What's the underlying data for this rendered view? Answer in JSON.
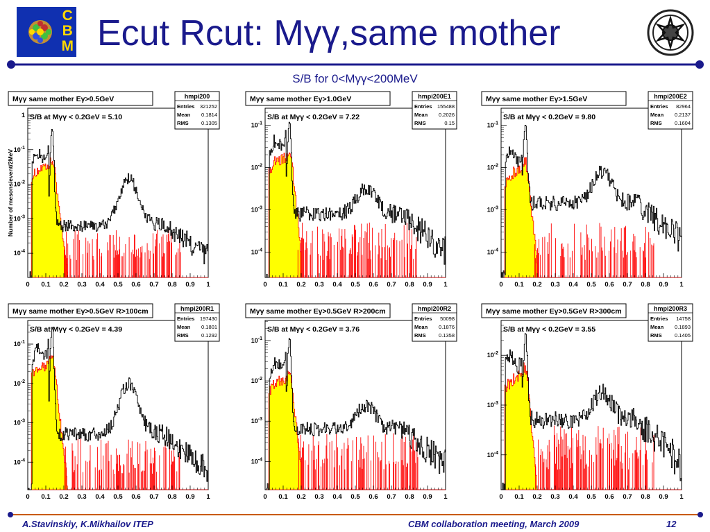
{
  "header": {
    "title": "Ecut Rcut: Mγγ,same mother",
    "subtitle": "S/B for 0<Mγγ<200MeV",
    "cbm_logo_letters": [
      "C",
      "B",
      "M"
    ]
  },
  "colors": {
    "title": "#1a1a8c",
    "rule_line": "#1a1a8c",
    "footer_line": "#c85a00",
    "fill_signal": "#ffff00",
    "line_signal": "#ff0000",
    "line_total": "#000000"
  },
  "footer": {
    "authors": "A.Stavinskiy, K.Mikhailov  ITEP",
    "meeting": "CBM collaboration meeting, March 2009",
    "page": "12"
  },
  "chart_data": [
    {
      "type": "area",
      "title": "Mγγ same mother Eγ>0.5GeV",
      "ylabel": "Number of mesons/event/2MeV",
      "stats_name": "hmpi200",
      "stats": [
        [
          "Entries",
          "321252"
        ],
        [
          "Mean",
          "0.1814"
        ],
        [
          "RMS",
          "0.1305"
        ]
      ],
      "annotation": "S/B at Mγγ < 0.2GeV =   5.10",
      "xlim": [
        0,
        1
      ],
      "x_ticks": [
        "0",
        "0.1",
        "0.2",
        "0.3",
        "0.4",
        "0.5",
        "0.6",
        "0.7",
        "0.8",
        "0.9",
        "1"
      ],
      "y_ticks": [
        "1",
        "10-1",
        "10-2",
        "10-3",
        "10-4"
      ],
      "y_log_range": [
        -4.7,
        0.2
      ],
      "shape": {
        "peak_x": 0.135,
        "peak_log": -0.45,
        "bump_x": 0.56,
        "bump_log": -1.85,
        "plateau_log": -3.2,
        "signal_log": -1.55,
        "signal_end": 0.22,
        "noise_log": -4.2
      }
    },
    {
      "type": "area",
      "title": "Mγγ same mother Eγ>1.0GeV",
      "stats_name": "hmpi200E1",
      "stats": [
        [
          "Entries",
          "155488"
        ],
        [
          "Mean",
          "0.2026"
        ],
        [
          "RMS",
          "0.15"
        ]
      ],
      "annotation": "S/B at Mγγ < 0.2GeV =   7.22",
      "xlim": [
        0,
        1
      ],
      "x_ticks": [
        "0",
        "0.1",
        "0.2",
        "0.3",
        "0.4",
        "0.5",
        "0.6",
        "0.7",
        "0.8",
        "0.9",
        "1"
      ],
      "y_ticks": [
        "10-1",
        "10-2",
        "10-3",
        "10-4"
      ],
      "y_log_range": [
        -4.6,
        -0.6
      ],
      "shape": {
        "peak_x": 0.135,
        "peak_log": -0.95,
        "bump_x": 0.56,
        "bump_log": -2.5,
        "plateau_log": -3.1,
        "signal_log": -1.8,
        "signal_end": 0.2,
        "noise_log": -4.2
      }
    },
    {
      "type": "area",
      "title": "Mγγ same mother Eγ>1.5GeV",
      "stats_name": "hmpi200E2",
      "stats": [
        [
          "Entries",
          "82964"
        ],
        [
          "Mean",
          "0.2137"
        ],
        [
          "RMS",
          "0.1604"
        ]
      ],
      "annotation": "S/B at Mγγ < 0.2GeV =   9.80",
      "xlim": [
        0,
        1
      ],
      "x_ticks": [
        "0",
        "0.1",
        "0.2",
        "0.3",
        "0.4",
        "0.5",
        "0.6",
        "0.7",
        "0.8",
        "0.9",
        "1"
      ],
      "y_ticks": [
        "10-1",
        "10-2",
        "10-3",
        "10-4"
      ],
      "y_log_range": [
        -4.6,
        -0.6
      ],
      "shape": {
        "peak_x": 0.135,
        "peak_log": -1.0,
        "bump_x": 0.56,
        "bump_log": -2.1,
        "plateau_log": -2.85,
        "signal_log": -2.1,
        "signal_end": 0.2,
        "noise_log": -4.2
      }
    },
    {
      "type": "area",
      "title": "Mγγ same mother Eγ>0.5GeV R>100cm",
      "stats_name": "hmpi200R1",
      "stats": [
        [
          "Entries",
          "197430"
        ],
        [
          "Mean",
          "0.1801"
        ],
        [
          "RMS",
          "0.1292"
        ]
      ],
      "annotation": "S/B at Mγγ < 0.2GeV =   4.39",
      "xlim": [
        0,
        1
      ],
      "x_ticks": [
        "0",
        "0.1",
        "0.2",
        "0.3",
        "0.4",
        "0.5",
        "0.6",
        "0.7",
        "0.8",
        "0.9",
        "1"
      ],
      "y_ticks": [
        "10-1",
        "10-2",
        "10-3",
        "10-4"
      ],
      "y_log_range": [
        -4.7,
        -0.4
      ],
      "shape": {
        "peak_x": 0.135,
        "peak_log": -0.55,
        "bump_x": 0.56,
        "bump_log": -2.0,
        "plateau_log": -3.3,
        "signal_log": -1.55,
        "signal_end": 0.22,
        "noise_log": -4.3
      }
    },
    {
      "type": "area",
      "title": "Mγγ same mother Eγ>0.5GeV R>200cm",
      "stats_name": "hmpi200R2",
      "stats": [
        [
          "Entries",
          "50098"
        ],
        [
          "Mean",
          "0.1876"
        ],
        [
          "RMS",
          "0.1358"
        ]
      ],
      "annotation": "S/B at Mγγ < 0.2GeV =   3.76",
      "xlim": [
        0,
        1
      ],
      "x_ticks": [
        "0",
        "0.1",
        "0.2",
        "0.3",
        "0.4",
        "0.5",
        "0.6",
        "0.7",
        "0.8",
        "0.9",
        "1"
      ],
      "y_ticks": [
        "10-1",
        "10-2",
        "10-3",
        "10-4"
      ],
      "y_log_range": [
        -4.7,
        -0.5
      ],
      "shape": {
        "peak_x": 0.135,
        "peak_log": -0.9,
        "bump_x": 0.56,
        "bump_log": -2.6,
        "plateau_log": -3.2,
        "signal_log": -2.0,
        "signal_end": 0.2,
        "noise_log": -4.2
      }
    },
    {
      "type": "area",
      "title": "Mγγ same mother Eγ>0.5GeV R>300cm",
      "stats_name": "hmpi200R3",
      "stats": [
        [
          "Entries",
          "14758"
        ],
        [
          "Mean",
          "0.1893"
        ],
        [
          "RMS",
          "0.1405"
        ]
      ],
      "annotation": "S/B at Mγγ < 0.2GeV =   3.55",
      "xlim": [
        0,
        1
      ],
      "x_ticks": [
        "0",
        "0.1",
        "0.2",
        "0.3",
        "0.4",
        "0.5",
        "0.6",
        "0.7",
        "0.8",
        "0.9",
        "1"
      ],
      "y_ticks": [
        "10-2",
        "10-3",
        "10-4"
      ],
      "y_log_range": [
        -4.7,
        -1.3
      ],
      "shape": {
        "peak_x": 0.135,
        "peak_log": -1.5,
        "bump_x": 0.56,
        "bump_log": -2.75,
        "plateau_log": -3.3,
        "signal_log": -2.45,
        "signal_end": 0.2,
        "noise_log": -4.3
      }
    }
  ]
}
